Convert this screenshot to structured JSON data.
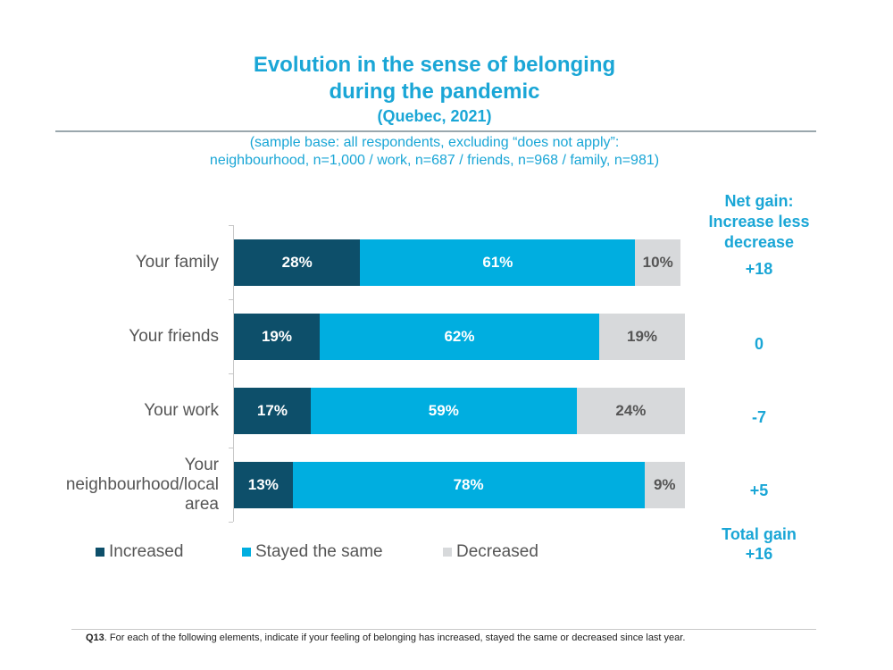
{
  "title": {
    "line1": "Evolution in the sense of belonging",
    "line2": "during the pandemic",
    "subtitle": "(Quebec, 2021)"
  },
  "sample": {
    "line1": "(sample base:  all respondents, excluding “does not apply”:",
    "line2": "neighbourhood, n=1,000 / work, n=687 / friends, n=968 / family, n=981)"
  },
  "net_gain": {
    "header_line1": "Net gain:",
    "header_line2": "Increase less",
    "header_line3": "decrease",
    "values": [
      "+18",
      "0",
      "-7",
      "+5"
    ],
    "total_line1": "Total gain",
    "total_line2": "+16"
  },
  "colors": {
    "increased": "#0d4f6a",
    "stayed": "#00aee0",
    "decreased": "#d7d9db"
  },
  "chart_data": {
    "type": "bar",
    "orientation": "horizontal",
    "stacked": true,
    "categories": [
      "Your family",
      "Your friends",
      "Your work",
      "Your neighbourhood/local area"
    ],
    "category_lines": [
      [
        "Your family"
      ],
      [
        "Your friends"
      ],
      [
        "Your work"
      ],
      [
        "Your",
        "neighbourhood/local",
        "area"
      ]
    ],
    "series": [
      {
        "name": "Increased",
        "values": [
          28,
          19,
          17,
          13
        ],
        "labels": [
          "28%",
          "19%",
          "17%",
          "13%"
        ]
      },
      {
        "name": "Stayed the same",
        "values": [
          61,
          62,
          59,
          78
        ],
        "labels": [
          "61%",
          "62%",
          "59%",
          "78%"
        ]
      },
      {
        "name": "Decreased",
        "values": [
          10,
          19,
          24,
          9
        ],
        "labels": [
          "10%",
          "19%",
          "24%",
          "9%"
        ]
      }
    ],
    "xlim": [
      0,
      100
    ],
    "legend_position": "bottom"
  },
  "footnote": {
    "code": "Q13",
    "text": ". For each of the following elements, indicate if your feeling of belonging has increased, stayed the same or decreased since last year."
  }
}
